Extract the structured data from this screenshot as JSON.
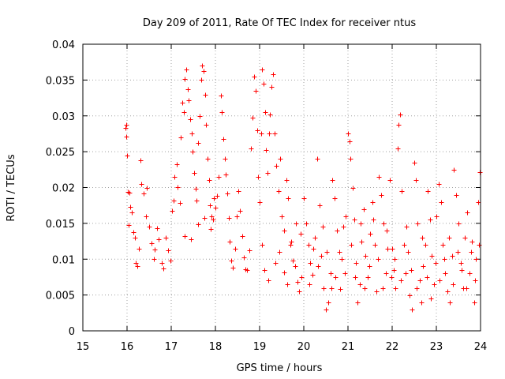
{
  "chart_data": {
    "type": "scatter",
    "title": "Day 209 of 2011, Rate Of TEC Index for receiver ntus",
    "xlabel": "GPS time / hours",
    "ylabel": "ROTI / TECUs",
    "xlim": [
      15,
      24
    ],
    "ylim": [
      0,
      0.04
    ],
    "x_ticks": [
      "15",
      "16",
      "17",
      "18",
      "19",
      "20",
      "21",
      "22",
      "23",
      "24"
    ],
    "y_ticks": [
      "0",
      "0.005",
      "0.01",
      "0.015",
      "0.02",
      "0.025",
      "0.03",
      "0.035",
      "0.04"
    ],
    "grid": true,
    "legend": "none",
    "marker": "plus",
    "marker_color": "#ff0000",
    "series": [
      {
        "points": [
          [
            15.97,
            0.0283
          ],
          [
            15.98,
            0.0288
          ],
          [
            15.99,
            0.0271
          ],
          [
            16.0,
            0.0245
          ],
          [
            16.01,
            0.0194
          ],
          [
            16.03,
            0.0148
          ],
          [
            16.06,
            0.0193
          ],
          [
            16.08,
            0.0173
          ],
          [
            16.1,
            0.0165
          ],
          [
            16.14,
            0.0138
          ],
          [
            16.18,
            0.013
          ],
          [
            16.2,
            0.0095
          ],
          [
            16.23,
            0.009
          ],
          [
            16.27,
            0.0115
          ],
          [
            16.3,
            0.0238
          ],
          [
            16.33,
            0.0205
          ],
          [
            16.37,
            0.0192
          ],
          [
            16.42,
            0.016
          ],
          [
            16.45,
            0.02
          ],
          [
            16.5,
            0.0145
          ],
          [
            16.55,
            0.0122
          ],
          [
            16.6,
            0.01
          ],
          [
            16.63,
            0.0113
          ],
          [
            16.67,
            0.0143
          ],
          [
            16.72,
            0.0128
          ],
          [
            16.78,
            0.0095
          ],
          [
            16.83,
            0.0087
          ],
          [
            16.88,
            0.013
          ],
          [
            16.93,
            0.0112
          ],
          [
            16.98,
            0.0098
          ],
          [
            17.02,
            0.0168
          ],
          [
            17.05,
            0.0182
          ],
          [
            17.08,
            0.0215
          ],
          [
            17.12,
            0.0232
          ],
          [
            17.15,
            0.0201
          ],
          [
            17.19,
            0.0178
          ],
          [
            17.22,
            0.027
          ],
          [
            17.25,
            0.0318
          ],
          [
            17.28,
            0.0305
          ],
          [
            17.31,
            0.0352
          ],
          [
            17.34,
            0.0365
          ],
          [
            17.37,
            0.0337
          ],
          [
            17.4,
            0.0322
          ],
          [
            17.43,
            0.0295
          ],
          [
            17.46,
            0.0275
          ],
          [
            17.49,
            0.025
          ],
          [
            17.52,
            0.022
          ],
          [
            17.55,
            0.0198
          ],
          [
            17.58,
            0.0182
          ],
          [
            17.61,
            0.0262
          ],
          [
            17.64,
            0.03
          ],
          [
            17.67,
            0.035
          ],
          [
            17.7,
            0.037
          ],
          [
            17.73,
            0.0363
          ],
          [
            17.76,
            0.033
          ],
          [
            17.79,
            0.0288
          ],
          [
            17.82,
            0.024
          ],
          [
            17.85,
            0.021
          ],
          [
            17.88,
            0.0175
          ],
          [
            17.91,
            0.016
          ],
          [
            17.94,
            0.0155
          ],
          [
            17.97,
            0.0185
          ],
          [
            17.3,
            0.0132
          ],
          [
            17.45,
            0.0128
          ],
          [
            17.6,
            0.0149
          ],
          [
            17.75,
            0.0158
          ],
          [
            17.9,
            0.0142
          ],
          [
            18.0,
            0.0172
          ],
          [
            18.04,
            0.0188
          ],
          [
            18.08,
            0.0215
          ],
          [
            18.12,
            0.0328
          ],
          [
            18.15,
            0.0305
          ],
          [
            18.18,
            0.0268
          ],
          [
            18.21,
            0.024
          ],
          [
            18.24,
            0.0218
          ],
          [
            18.27,
            0.0192
          ],
          [
            18.3,
            0.0158
          ],
          [
            18.33,
            0.0125
          ],
          [
            18.36,
            0.0098
          ],
          [
            18.4,
            0.0088
          ],
          [
            18.44,
            0.0115
          ],
          [
            18.48,
            0.016
          ],
          [
            18.52,
            0.0195
          ],
          [
            18.56,
            0.0168
          ],
          [
            18.6,
            0.0132
          ],
          [
            18.64,
            0.0102
          ],
          [
            18.68,
            0.0086
          ],
          [
            18.72,
            0.0085
          ],
          [
            18.76,
            0.0112
          ],
          [
            18.8,
            0.0255
          ],
          [
            18.84,
            0.0298
          ],
          [
            18.88,
            0.0355
          ],
          [
            18.91,
            0.0335
          ],
          [
            18.94,
            0.028
          ],
          [
            18.97,
            0.0215
          ],
          [
            19.0,
            0.018
          ],
          [
            19.03,
            0.0275
          ],
          [
            19.06,
            0.0365
          ],
          [
            19.09,
            0.0345
          ],
          [
            19.12,
            0.0305
          ],
          [
            19.15,
            0.0252
          ],
          [
            19.18,
            0.022
          ],
          [
            19.21,
            0.0275
          ],
          [
            19.24,
            0.0302
          ],
          [
            19.27,
            0.034
          ],
          [
            19.3,
            0.0358
          ],
          [
            19.34,
            0.0275
          ],
          [
            19.38,
            0.023
          ],
          [
            19.42,
            0.0195
          ],
          [
            19.46,
            0.024
          ],
          [
            19.5,
            0.016
          ],
          [
            19.55,
            0.014
          ],
          [
            19.6,
            0.021
          ],
          [
            19.65,
            0.0185
          ],
          [
            19.7,
            0.012
          ],
          [
            19.75,
            0.0098
          ],
          [
            19.8,
            0.009
          ],
          [
            19.85,
            0.0068
          ],
          [
            19.9,
            0.0055
          ],
          [
            19.95,
            0.0075
          ],
          [
            19.05,
            0.012
          ],
          [
            19.1,
            0.0085
          ],
          [
            19.2,
            0.007
          ],
          [
            19.35,
            0.0095
          ],
          [
            19.45,
            0.011
          ],
          [
            19.55,
            0.0082
          ],
          [
            19.62,
            0.0065
          ],
          [
            19.72,
            0.0125
          ],
          [
            19.82,
            0.015
          ],
          [
            19.92,
            0.0135
          ],
          [
            20.0,
            0.0185
          ],
          [
            20.05,
            0.015
          ],
          [
            20.1,
            0.012
          ],
          [
            20.15,
            0.0095
          ],
          [
            20.2,
            0.0078
          ],
          [
            20.25,
            0.013
          ],
          [
            20.3,
            0.024
          ],
          [
            20.35,
            0.0175
          ],
          [
            20.4,
            0.0105
          ],
          [
            20.45,
            0.006
          ],
          [
            20.5,
            0.003
          ],
          [
            20.55,
            0.004
          ],
          [
            20.6,
            0.008
          ],
          [
            20.65,
            0.021
          ],
          [
            20.7,
            0.0185
          ],
          [
            20.75,
            0.014
          ],
          [
            20.8,
            0.011
          ],
          [
            20.85,
            0.01
          ],
          [
            20.9,
            0.0145
          ],
          [
            20.95,
            0.016
          ],
          [
            20.12,
            0.0065
          ],
          [
            20.22,
            0.0115
          ],
          [
            20.32,
            0.009
          ],
          [
            20.42,
            0.0145
          ],
          [
            20.52,
            0.011
          ],
          [
            20.62,
            0.006
          ],
          [
            20.72,
            0.0075
          ],
          [
            20.82,
            0.0058
          ],
          [
            20.92,
            0.008
          ],
          [
            21.0,
            0.0275
          ],
          [
            21.03,
            0.0265
          ],
          [
            21.06,
            0.024
          ],
          [
            21.1,
            0.02
          ],
          [
            21.14,
            0.0155
          ],
          [
            21.18,
            0.0095
          ],
          [
            21.22,
            0.004
          ],
          [
            21.26,
            0.0065
          ],
          [
            21.3,
            0.0125
          ],
          [
            21.35,
            0.017
          ],
          [
            21.4,
            0.0105
          ],
          [
            21.45,
            0.0075
          ],
          [
            21.5,
            0.0135
          ],
          [
            21.55,
            0.018
          ],
          [
            21.6,
            0.012
          ],
          [
            21.65,
            0.0055
          ],
          [
            21.7,
            0.0215
          ],
          [
            21.75,
            0.019
          ],
          [
            21.8,
            0.015
          ],
          [
            21.85,
            0.008
          ],
          [
            21.9,
            0.0115
          ],
          [
            21.95,
            0.021
          ],
          [
            21.08,
            0.012
          ],
          [
            21.16,
            0.0075
          ],
          [
            21.28,
            0.015
          ],
          [
            21.38,
            0.006
          ],
          [
            21.48,
            0.009
          ],
          [
            21.58,
            0.0155
          ],
          [
            21.68,
            0.01
          ],
          [
            21.78,
            0.006
          ],
          [
            21.88,
            0.014
          ],
          [
            21.98,
            0.0075
          ],
          [
            22.0,
            0.0115
          ],
          [
            22.04,
            0.0085
          ],
          [
            22.08,
            0.006
          ],
          [
            22.12,
            0.0255
          ],
          [
            22.15,
            0.0288
          ],
          [
            22.18,
            0.0302
          ],
          [
            22.22,
            0.0195
          ],
          [
            22.26,
            0.012
          ],
          [
            22.3,
            0.008
          ],
          [
            22.35,
            0.011
          ],
          [
            22.4,
            0.005
          ],
          [
            22.45,
            0.003
          ],
          [
            22.5,
            0.0235
          ],
          [
            22.54,
            0.021
          ],
          [
            22.58,
            0.015
          ],
          [
            22.62,
            0.007
          ],
          [
            22.66,
            0.004
          ],
          [
            22.7,
            0.009
          ],
          [
            22.75,
            0.012
          ],
          [
            22.8,
            0.0195
          ],
          [
            22.85,
            0.0155
          ],
          [
            22.9,
            0.0105
          ],
          [
            22.95,
            0.0065
          ],
          [
            22.06,
            0.01
          ],
          [
            22.2,
            0.007
          ],
          [
            22.32,
            0.0145
          ],
          [
            22.42,
            0.0085
          ],
          [
            22.56,
            0.006
          ],
          [
            22.68,
            0.013
          ],
          [
            22.78,
            0.0075
          ],
          [
            22.88,
            0.0045
          ],
          [
            22.98,
            0.0095
          ],
          [
            23.0,
            0.016
          ],
          [
            23.05,
            0.0205
          ],
          [
            23.1,
            0.018
          ],
          [
            23.15,
            0.012
          ],
          [
            23.2,
            0.008
          ],
          [
            23.25,
            0.0055
          ],
          [
            23.3,
            0.004
          ],
          [
            23.35,
            0.0105
          ],
          [
            23.4,
            0.0225
          ],
          [
            23.45,
            0.019
          ],
          [
            23.5,
            0.015
          ],
          [
            23.55,
            0.0095
          ],
          [
            23.6,
            0.006
          ],
          [
            23.65,
            0.013
          ],
          [
            23.7,
            0.0165
          ],
          [
            23.75,
            0.008
          ],
          [
            23.8,
            0.0125
          ],
          [
            23.85,
            0.004
          ],
          [
            23.9,
            0.01
          ],
          [
            23.95,
            0.018
          ],
          [
            23.98,
            0.0222
          ],
          [
            23.08,
            0.007
          ],
          [
            23.18,
            0.01
          ],
          [
            23.28,
            0.013
          ],
          [
            23.38,
            0.0065
          ],
          [
            23.48,
            0.011
          ],
          [
            23.58,
            0.0085
          ],
          [
            23.68,
            0.006
          ],
          [
            23.78,
            0.011
          ],
          [
            23.88,
            0.007
          ],
          [
            23.97,
            0.012
          ]
        ]
      }
    ]
  }
}
